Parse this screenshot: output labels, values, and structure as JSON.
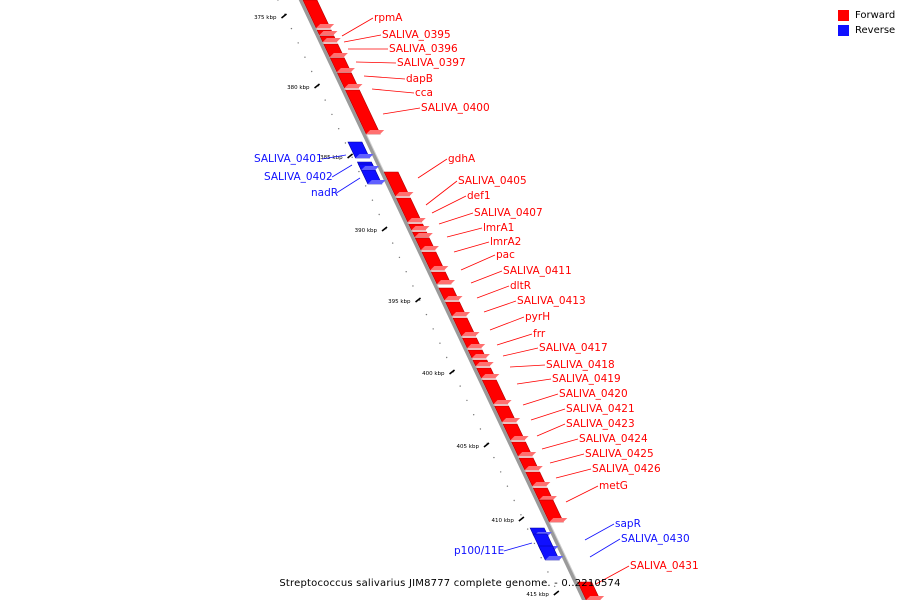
{
  "colors": {
    "forward": "#ff0000",
    "reverse": "#1010ff",
    "backbone": "#9a9a9a",
    "tick": "#000000"
  },
  "legend": [
    {
      "label": "Forward",
      "color": "#ff0000"
    },
    {
      "label": "Reverse",
      "color": "#1010ff"
    }
  ],
  "caption": "Streptococcus salivarius JIM8777 complete genome. - 0..2210574",
  "ticks": [
    "375 kbp",
    "380 kbp",
    "385 kbp",
    "390 kbp",
    "395 kbp",
    "400 kbp",
    "405 kbp",
    "410 kbp",
    "415 kbp"
  ],
  "genes": [
    {
      "label": "rpmA",
      "strand": "forward"
    },
    {
      "label": "SALIVA_0395",
      "strand": "forward"
    },
    {
      "label": "SALIVA_0396",
      "strand": "forward"
    },
    {
      "label": "SALIVA_0397",
      "strand": "forward"
    },
    {
      "label": "dapB",
      "strand": "forward"
    },
    {
      "label": "cca",
      "strand": "forward"
    },
    {
      "label": "SALIVA_0400",
      "strand": "forward"
    },
    {
      "label": "SALIVA_0401",
      "strand": "reverse"
    },
    {
      "label": "SALIVA_0402",
      "strand": "reverse"
    },
    {
      "label": "nadR",
      "strand": "reverse"
    },
    {
      "label": "gdhA",
      "strand": "forward"
    },
    {
      "label": "SALIVA_0405",
      "strand": "forward"
    },
    {
      "label": "def1",
      "strand": "forward"
    },
    {
      "label": "SALIVA_0407",
      "strand": "forward"
    },
    {
      "label": "lmrA1",
      "strand": "forward"
    },
    {
      "label": "lmrA2",
      "strand": "forward"
    },
    {
      "label": "pac",
      "strand": "forward"
    },
    {
      "label": "SALIVA_0411",
      "strand": "forward"
    },
    {
      "label": "dltR",
      "strand": "forward"
    },
    {
      "label": "SALIVA_0413",
      "strand": "forward"
    },
    {
      "label": "pyrH",
      "strand": "forward"
    },
    {
      "label": "frr",
      "strand": "forward"
    },
    {
      "label": "SALIVA_0417",
      "strand": "forward"
    },
    {
      "label": "SALIVA_0418",
      "strand": "forward"
    },
    {
      "label": "SALIVA_0419",
      "strand": "forward"
    },
    {
      "label": "SALIVA_0420",
      "strand": "forward"
    },
    {
      "label": "SALIVA_0421",
      "strand": "forward"
    },
    {
      "label": "SALIVA_0423",
      "strand": "forward"
    },
    {
      "label": "SALIVA_0424",
      "strand": "forward"
    },
    {
      "label": "SALIVA_0425",
      "strand": "forward"
    },
    {
      "label": "SALIVA_0426",
      "strand": "forward"
    },
    {
      "label": "metG",
      "strand": "forward"
    },
    {
      "label": "sapR",
      "strand": "reverse"
    },
    {
      "label": "SALIVA_0430",
      "strand": "reverse"
    },
    {
      "label": "p100/11E",
      "strand": "reverse"
    },
    {
      "label": "SALIVA_0431",
      "strand": "forward"
    }
  ]
}
